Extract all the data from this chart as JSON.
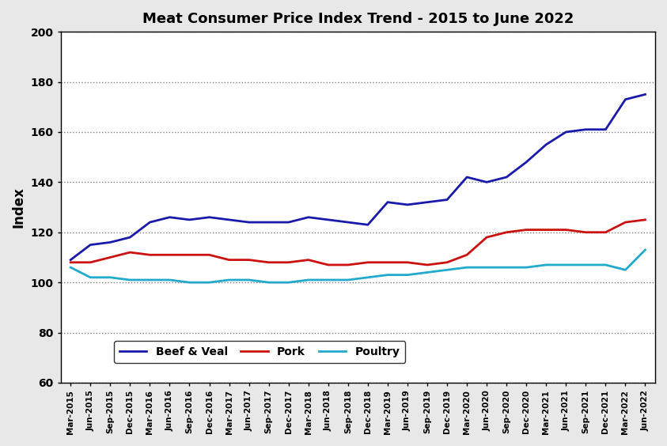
{
  "title": "Meat Consumer Price Index Trend - 2015 to June 2022",
  "ylabel": "Index",
  "ylim": [
    60,
    200
  ],
  "yticks": [
    60,
    80,
    100,
    120,
    140,
    160,
    180,
    200
  ],
  "beef_color": "#1a1aaa",
  "pork_color": "#cc1111",
  "poultry_color": "#22aacc",
  "line_width": 2.0,
  "fig_facecolor": "#e8e8e8",
  "plot_facecolor": "#ffffff",
  "labels": [
    "Mar-2015",
    "Jun-2015",
    "Sep-2015",
    "Dec-2015",
    "Mar-2016",
    "Jun-2016",
    "Sep-2016",
    "Dec-2016",
    "Mar-2017",
    "Jun-2017",
    "Sep-2017",
    "Dec-2017",
    "Mar-2018",
    "Jun-2018",
    "Sep-2018",
    "Dec-2018",
    "Mar-2019",
    "Jun-2019",
    "Sep-2019",
    "Dec-2019",
    "Mar-2020",
    "Jun-2020",
    "Sep-2020",
    "Dec-2020",
    "Mar-2021",
    "Jun-2021",
    "Sep-2021",
    "Dec-2021",
    "Mar-2022",
    "Jun-2022"
  ],
  "beef": [
    109,
    115,
    116,
    118,
    124,
    126,
    125,
    126,
    125,
    124,
    124,
    124,
    126,
    125,
    124,
    123,
    132,
    131,
    132,
    133,
    142,
    140,
    142,
    148,
    155,
    160,
    161,
    161,
    173,
    175
  ],
  "pork": [
    108,
    108,
    110,
    112,
    111,
    111,
    111,
    111,
    109,
    109,
    108,
    108,
    109,
    107,
    107,
    108,
    108,
    108,
    107,
    108,
    111,
    118,
    120,
    121,
    121,
    121,
    120,
    120,
    124,
    125
  ],
  "poultry": [
    106,
    102,
    102,
    101,
    101,
    101,
    100,
    100,
    101,
    101,
    100,
    100,
    101,
    101,
    101,
    102,
    103,
    103,
    104,
    105,
    106,
    106,
    106,
    106,
    107,
    107,
    107,
    107,
    105,
    113
  ]
}
